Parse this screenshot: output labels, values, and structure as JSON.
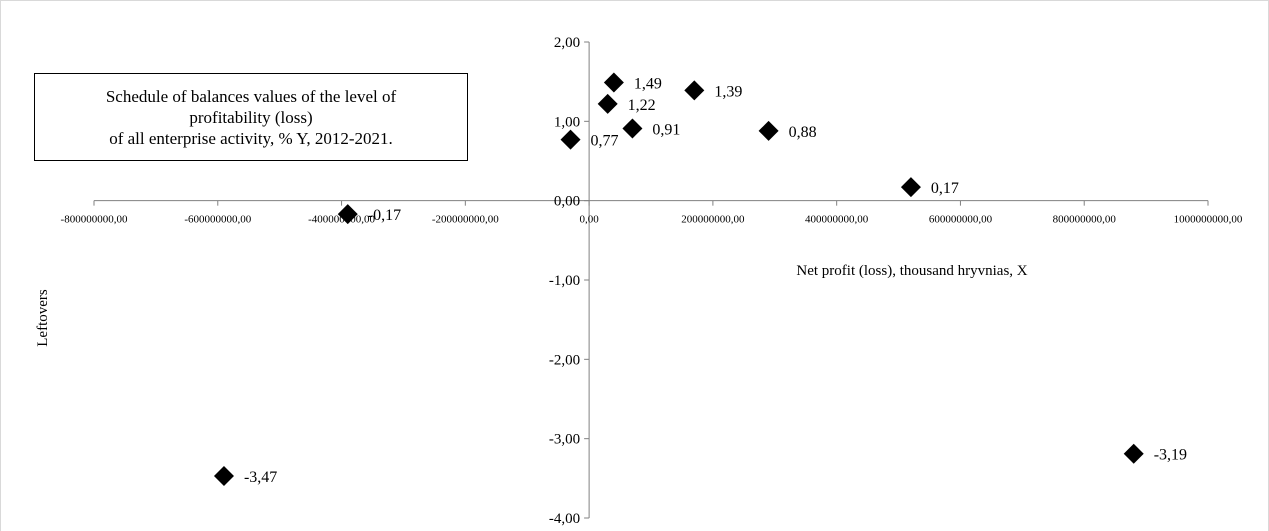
{
  "chart_data": {
    "type": "scatter",
    "title_lines": [
      "Schedule of balances values of the level of",
      "profitability (loss)",
      "of all enterprise activity, % Y, 2012-2021."
    ],
    "xlabel": "Net profit (loss), thousand hryvnias, X",
    "ylabel": "Leftovers",
    "xlim": [
      -800000000,
      1000000000
    ],
    "ylim": [
      -4,
      2
    ],
    "x_ticks": [
      -800000000,
      -600000000,
      -400000000,
      -200000000,
      0,
      200000000,
      400000000,
      600000000,
      800000000,
      1000000000
    ],
    "x_tick_labels": [
      "-800000000,00",
      "-600000000,00",
      "-400000000,00",
      "-200000000,00",
      "0,00",
      "200000000,00",
      "400000000,00",
      "600000000,00",
      "800000000,00",
      "1000000000,00"
    ],
    "y_ticks": [
      2,
      1,
      0,
      -1,
      -2,
      -3,
      -4
    ],
    "y_tick_labels": [
      "2,00",
      "1,00",
      "0,00",
      "-1,00",
      "-2,00",
      "-3,00",
      "-4,00"
    ],
    "grid": false,
    "legend": "none",
    "marker_color": "#000000",
    "points": [
      {
        "x": -590000000,
        "y": -3.47,
        "label": "-3,47"
      },
      {
        "x": -390000000,
        "y": -0.17,
        "label": "-0,17"
      },
      {
        "x": -30000000,
        "y": 0.77,
        "label": "0,77"
      },
      {
        "x": 30000000,
        "y": 1.22,
        "label": "1,22"
      },
      {
        "x": 40000000,
        "y": 1.49,
        "label": "1,49"
      },
      {
        "x": 70000000,
        "y": 0.91,
        "label": "0,91"
      },
      {
        "x": 170000000,
        "y": 1.39,
        "label": "1,39"
      },
      {
        "x": 290000000,
        "y": 0.88,
        "label": "0,88"
      },
      {
        "x": 520000000,
        "y": 0.17,
        "label": "0,17"
      },
      {
        "x": 880000000,
        "y": -3.19,
        "label": "-3,19"
      }
    ]
  }
}
